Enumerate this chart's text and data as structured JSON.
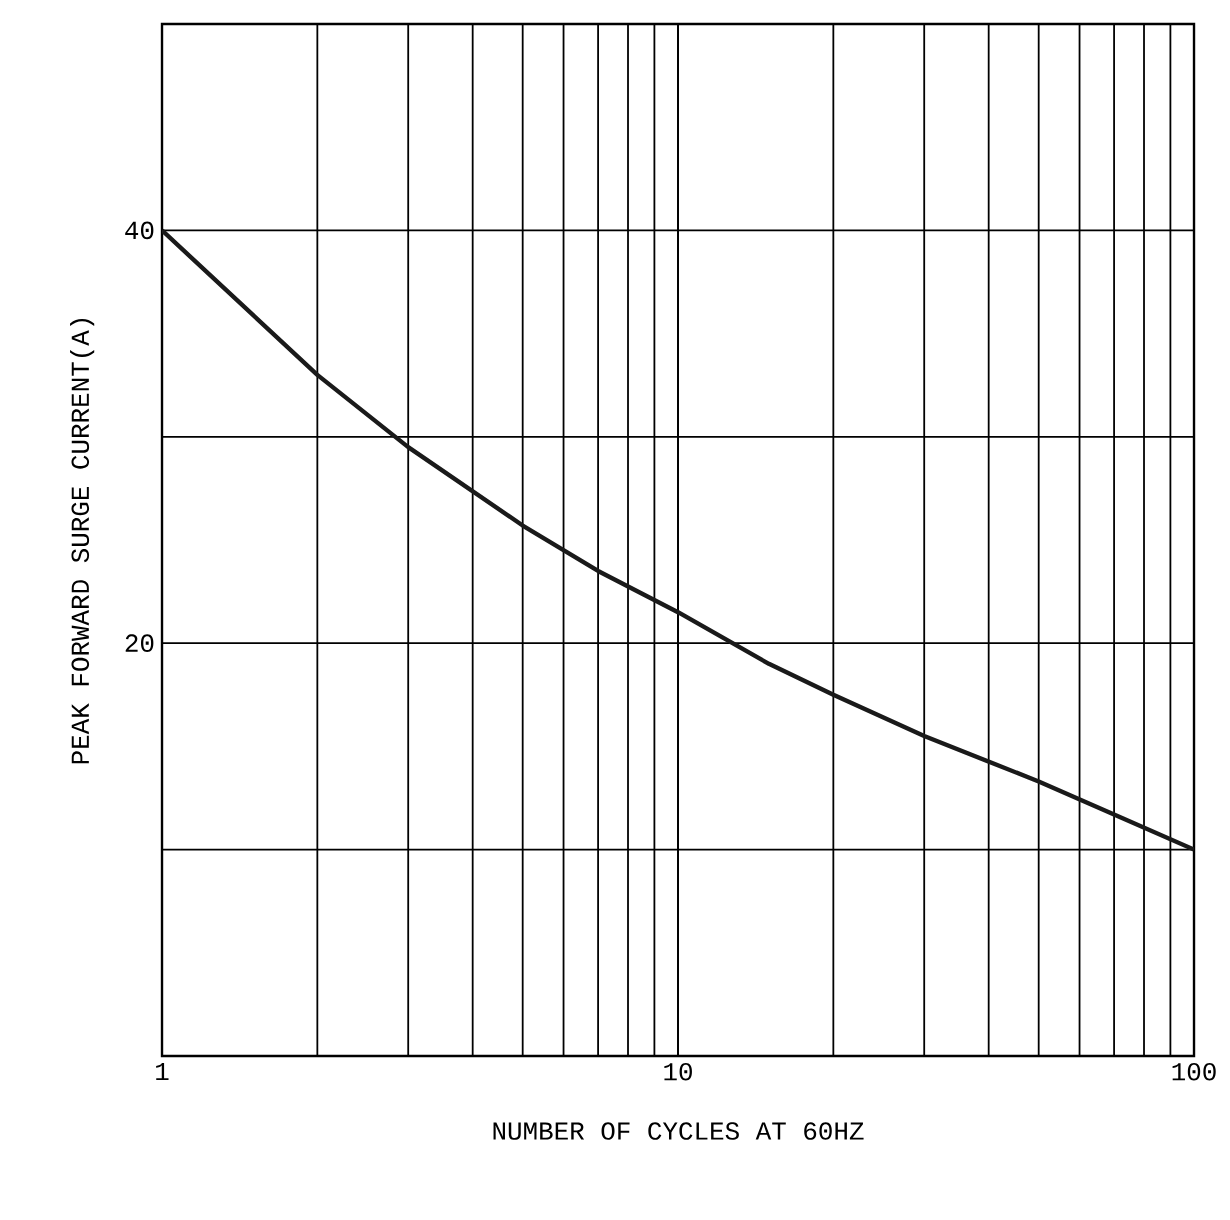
{
  "chart_data": {
    "type": "line",
    "xlabel": "NUMBER OF CYCLES AT 60HZ",
    "ylabel": "PEAK FORWARD SURGE CURRENT(A)",
    "log": "x",
    "grid": true,
    "xlim": [
      1,
      100
    ],
    "xticks": [
      1,
      10,
      100
    ],
    "ylim": [
      0,
      50
    ],
    "yticks": [
      {
        "value": 10,
        "label": null
      },
      20,
      {
        "value": 30,
        "label": null
      },
      40
    ],
    "series": [
      {
        "color": "#1a1a1a",
        "x": [
          1,
          2,
          3,
          5,
          7,
          10,
          15,
          20,
          30,
          50,
          70,
          100
        ],
        "values": [
          40,
          33,
          29.5,
          25.7,
          23.5,
          21.5,
          19,
          17.5,
          15.5,
          13.3,
          11.7,
          10
        ]
      }
    ]
  }
}
